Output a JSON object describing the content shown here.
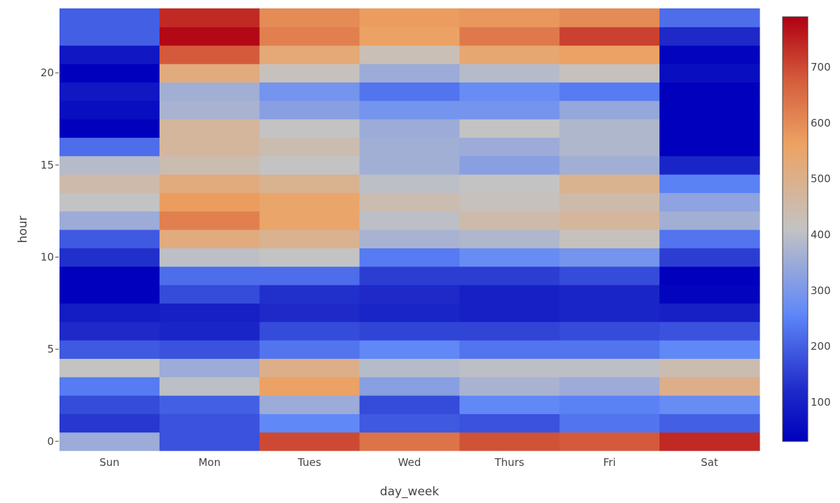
{
  "chart_data": {
    "type": "heatmap",
    "x": [
      "Sun",
      "Mon",
      "Tues",
      "Wed",
      "Thurs",
      "Fri",
      "Sat"
    ],
    "y": [
      0,
      1,
      2,
      3,
      4,
      5,
      6,
      7,
      8,
      9,
      10,
      11,
      12,
      13,
      14,
      15,
      16,
      17,
      18,
      19,
      20,
      21,
      22,
      23
    ],
    "z": [
      [
        350,
        180,
        700,
        640,
        690,
        680,
        740
      ],
      [
        140,
        180,
        260,
        190,
        180,
        230,
        200
      ],
      [
        170,
        200,
        350,
        170,
        260,
        250,
        270
      ],
      [
        240,
        400,
        560,
        320,
        370,
        350,
        500
      ],
      [
        410,
        350,
        500,
        390,
        400,
        400,
        440
      ],
      [
        190,
        180,
        230,
        260,
        230,
        230,
        260
      ],
      [
        120,
        110,
        170,
        160,
        160,
        170,
        180
      ],
      [
        90,
        100,
        120,
        110,
        100,
        110,
        100
      ],
      [
        30,
        170,
        130,
        120,
        100,
        110,
        40
      ],
      [
        30,
        220,
        220,
        150,
        150,
        170,
        30
      ],
      [
        130,
        400,
        410,
        240,
        270,
        290,
        150
      ],
      [
        190,
        520,
        490,
        370,
        380,
        420,
        230
      ],
      [
        350,
        620,
        550,
        400,
        450,
        470,
        360
      ],
      [
        410,
        570,
        550,
        440,
        420,
        450,
        330
      ],
      [
        450,
        520,
        490,
        400,
        410,
        490,
        250
      ],
      [
        390,
        440,
        410,
        360,
        320,
        360,
        110
      ],
      [
        220,
        470,
        440,
        360,
        350,
        380,
        30
      ],
      [
        30,
        470,
        410,
        350,
        410,
        380,
        30
      ],
      [
        60,
        370,
        320,
        290,
        290,
        340,
        30
      ],
      [
        80,
        360,
        290,
        230,
        270,
        240,
        30
      ],
      [
        30,
        520,
        420,
        350,
        390,
        420,
        60
      ],
      [
        80,
        680,
        530,
        430,
        540,
        560,
        40
      ],
      [
        200,
        780,
        620,
        560,
        630,
        710,
        120
      ],
      [
        200,
        740,
        600,
        570,
        580,
        600,
        220
      ]
    ],
    "zmin": 30,
    "zmax": 790,
    "colorscale": "coolwarm",
    "colorscale_stops": [
      [
        0,
        "#0000bd"
      ],
      [
        0.12,
        "#1e2ac8"
      ],
      [
        0.3,
        "#5f87f8"
      ],
      [
        0.5,
        "#c3c3c3"
      ],
      [
        0.7,
        "#eda263"
      ],
      [
        0.85,
        "#d55d3c"
      ],
      [
        1,
        "#b00012"
      ]
    ],
    "xlabel": "day_week",
    "ylabel": "hour",
    "yticks": [
      0,
      5,
      10,
      15,
      20
    ],
    "colorbar_ticks": [
      100,
      200,
      300,
      400,
      500,
      600,
      700
    ],
    "grid": false
  }
}
